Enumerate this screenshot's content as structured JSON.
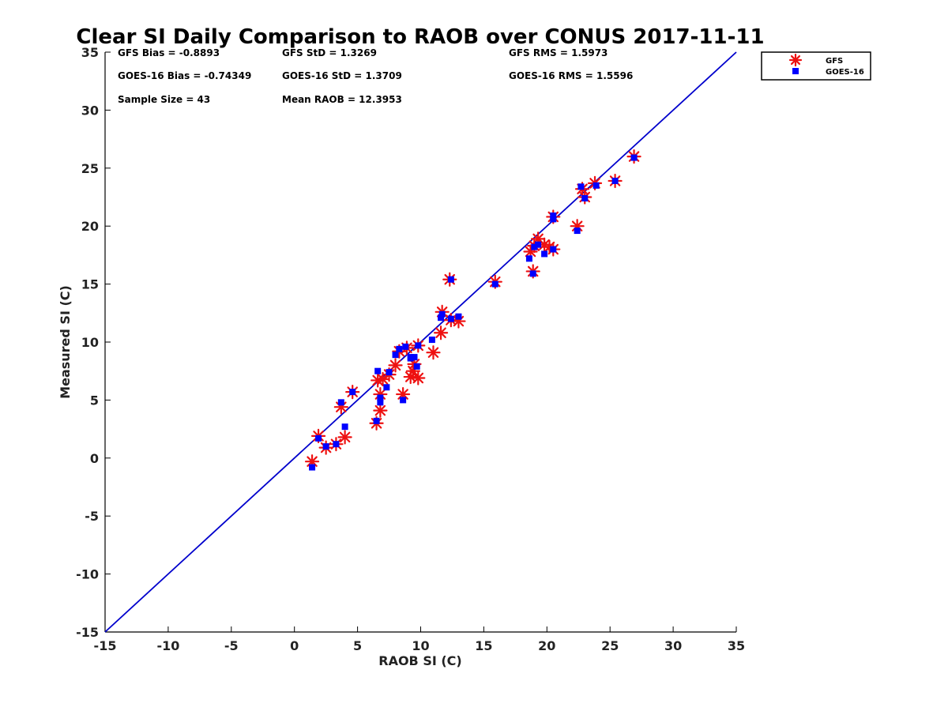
{
  "chart_data": {
    "type": "scatter",
    "title": "Clear SI Daily Comparison to RAOB over CONUS 2017-11-11",
    "xlabel": "RAOB SI (C)",
    "ylabel": "Measured SI (C)",
    "xlim": [
      -15,
      35
    ],
    "ylim": [
      -15,
      35
    ],
    "xticks": [
      "-15",
      "-10",
      "-5",
      "0",
      "5",
      "10",
      "15",
      "20",
      "25",
      "30",
      "35"
    ],
    "yticks": [
      "-15",
      "-10",
      "-5",
      "0",
      "5",
      "10",
      "15",
      "20",
      "25",
      "30",
      "35"
    ],
    "legend_position": "outside-top-right",
    "one_to_one_line": [
      [
        -15,
        -15
      ],
      [
        35,
        35
      ]
    ],
    "line_color": "#0000cc",
    "stats": {
      "gfs_bias": "GFS Bias = -0.8893",
      "gfs_std": "GFS StD = 1.3269",
      "gfs_rms": "GFS RMS = 1.5973",
      "goes_bias": "GOES-16 Bias = -0.74349",
      "goes_std": "GOES-16 StD = 1.3709",
      "goes_rms": "GOES-16 RMS = 1.5596",
      "sample_size": "Sample Size = 43",
      "mean_raob": "Mean RAOB = 12.3953"
    },
    "series": [
      {
        "name": "GFS",
        "marker": "asterisk",
        "color": "#ee1111",
        "points": [
          [
            1.4,
            -0.3
          ],
          [
            1.9,
            1.9
          ],
          [
            2.5,
            0.9
          ],
          [
            3.3,
            1.2
          ],
          [
            3.7,
            4.4
          ],
          [
            4.0,
            1.8
          ],
          [
            4.6,
            5.7
          ],
          [
            6.5,
            3.0
          ],
          [
            6.6,
            6.7
          ],
          [
            6.8,
            4.1
          ],
          [
            6.8,
            5.5
          ],
          [
            7.0,
            6.8
          ],
          [
            7.5,
            7.2
          ],
          [
            8.0,
            8.0
          ],
          [
            8.3,
            9.2
          ],
          [
            8.6,
            5.5
          ],
          [
            9.2,
            7.0
          ],
          [
            9.4,
            7.5
          ],
          [
            9.5,
            8.1
          ],
          [
            9.8,
            6.9
          ],
          [
            9.8,
            9.7
          ],
          [
            11.0,
            9.1
          ],
          [
            11.6,
            10.8
          ],
          [
            11.7,
            12.6
          ],
          [
            12.3,
            15.4
          ],
          [
            12.4,
            11.9
          ],
          [
            13.0,
            11.8
          ],
          [
            15.9,
            15.2
          ],
          [
            18.7,
            17.8
          ],
          [
            18.9,
            16.1
          ],
          [
            19.0,
            18.3
          ],
          [
            19.3,
            18.9
          ],
          [
            19.8,
            18.4
          ],
          [
            20.2,
            18.2
          ],
          [
            20.5,
            20.8
          ],
          [
            20.5,
            18.0
          ],
          [
            22.4,
            20.0
          ],
          [
            22.8,
            23.2
          ],
          [
            23.0,
            22.5
          ],
          [
            23.8,
            23.7
          ],
          [
            25.4,
            23.9
          ],
          [
            26.9,
            26.0
          ],
          [
            8.9,
            9.5
          ]
        ]
      },
      {
        "name": "GOES-16",
        "marker": "square",
        "color": "#0000ff",
        "points": [
          [
            1.4,
            -0.8
          ],
          [
            1.9,
            1.7
          ],
          [
            2.5,
            1.0
          ],
          [
            3.3,
            1.2
          ],
          [
            3.7,
            4.8
          ],
          [
            4.0,
            2.7
          ],
          [
            4.6,
            5.7
          ],
          [
            6.5,
            3.2
          ],
          [
            6.6,
            7.5
          ],
          [
            6.8,
            4.8
          ],
          [
            6.8,
            5.2
          ],
          [
            7.3,
            6.1
          ],
          [
            7.5,
            7.4
          ],
          [
            8.0,
            8.9
          ],
          [
            8.3,
            9.4
          ],
          [
            8.6,
            5.0
          ],
          [
            9.2,
            8.7
          ],
          [
            9.5,
            8.7
          ],
          [
            9.7,
            7.9
          ],
          [
            9.8,
            9.7
          ],
          [
            10.9,
            10.2
          ],
          [
            11.6,
            12.1
          ],
          [
            11.7,
            12.4
          ],
          [
            12.4,
            15.4
          ],
          [
            12.4,
            12.0
          ],
          [
            13.0,
            12.2
          ],
          [
            15.9,
            15.0
          ],
          [
            18.6,
            17.2
          ],
          [
            18.9,
            15.9
          ],
          [
            19.0,
            18.2
          ],
          [
            19.3,
            18.4
          ],
          [
            19.8,
            17.6
          ],
          [
            20.5,
            20.6
          ],
          [
            20.5,
            20.9
          ],
          [
            20.5,
            18.0
          ],
          [
            22.4,
            19.6
          ],
          [
            22.7,
            23.4
          ],
          [
            23.0,
            22.4
          ],
          [
            23.9,
            23.5
          ],
          [
            25.4,
            23.9
          ],
          [
            26.9,
            25.9
          ],
          [
            8.8,
            9.6
          ],
          [
            9.2,
            8.6
          ]
        ]
      }
    ]
  }
}
